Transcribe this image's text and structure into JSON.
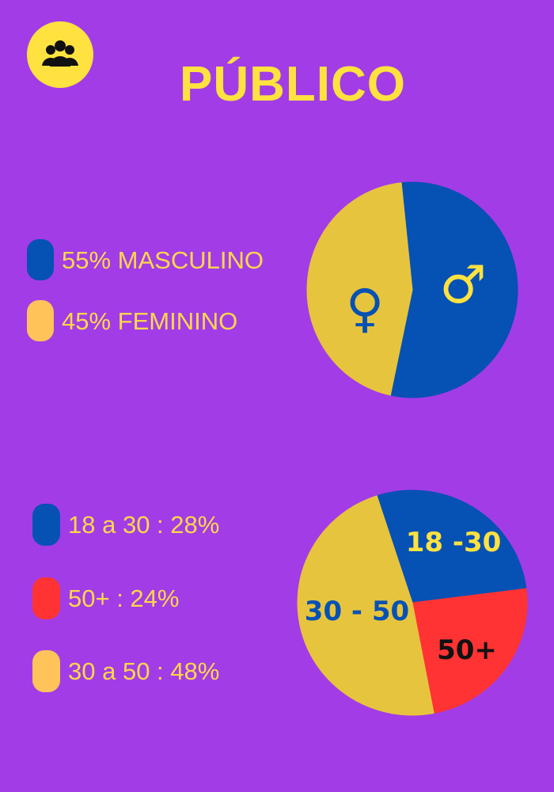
{
  "header": {
    "title": "PÚBLICO",
    "icon": "users-icon"
  },
  "colors": {
    "background": "#a23ce6",
    "accent_yellow": "#ffe23f",
    "legend_text": "#ffd84a",
    "blue": "#0651b4",
    "gold": "#e7c43d",
    "red": "#ff3333",
    "light_orange": "#ffc35a",
    "black": "#111111"
  },
  "legend_gender": [
    {
      "label": "55%  MASCULINO",
      "color": "#0651b4"
    },
    {
      "label": "45% FEMININO",
      "color": "#ffc35a"
    }
  ],
  "legend_age": [
    {
      "label": "18 a 30 : 28%",
      "color": "#0651b4"
    },
    {
      "label": "50+ :  24%",
      "color": "#ff3333"
    },
    {
      "label": "30 a 50 : 48%",
      "color": "#ffc35a"
    }
  ],
  "chart_data": [
    {
      "type": "pie",
      "categories": [
        "MASCULINO",
        "FEMININO"
      ],
      "values": [
        55,
        45
      ],
      "slice_colors": [
        "#0651b4",
        "#e7c43d"
      ],
      "slice_symbols": [
        "♂",
        "♀"
      ],
      "symbol_colors": [
        "#ffe23f",
        "#0651b4"
      ]
    },
    {
      "type": "pie",
      "categories": [
        "18 -30",
        "50+",
        "30 - 50"
      ],
      "values": [
        28,
        24,
        48
      ],
      "slice_colors": [
        "#0651b4",
        "#ff3333",
        "#e7c43d"
      ],
      "slice_labels": [
        "18 -30",
        "50+",
        "30 - 50"
      ],
      "label_colors": [
        "#ffe23f",
        "#111111",
        "#0651b4"
      ]
    }
  ]
}
